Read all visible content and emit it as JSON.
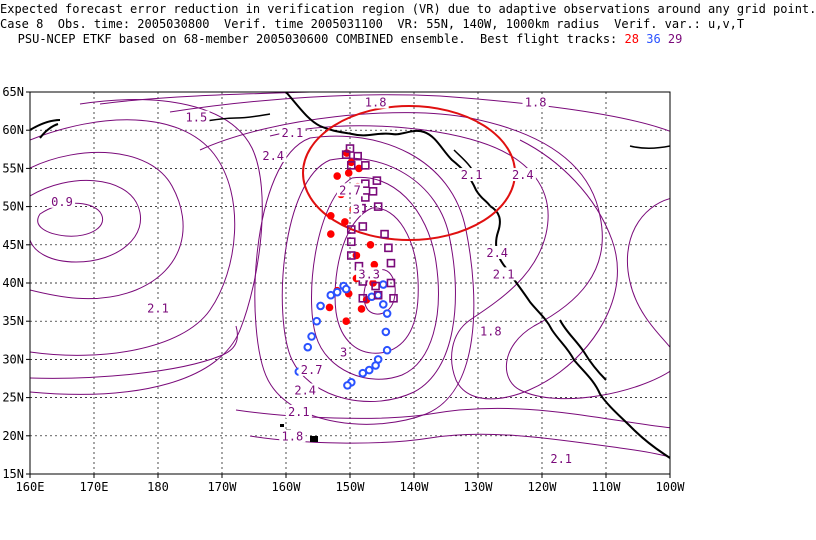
{
  "title": {
    "line1": "Expected forecast error reduction in verification region (VR) due to adaptive observations around any grid point.",
    "line2": "Case 8  Obs. time: 2005030800  Verif. time 2005031100  VR: 55N, 140W, 1000km radius  Verif. var.: u,v,T",
    "line3_prefix": "PSU-NCEP ETKF based on 68-member 2005030600 COMBINED ensemble.  Best flight tracks:",
    "track_28": "28",
    "track_36": "36",
    "track_29": "29"
  },
  "colors": {
    "contour": "#7a0a7a",
    "track_28": "#ff0000",
    "track_36": "#2a52ff",
    "track_29": "#7a0a7a",
    "verification_region": "#e01010",
    "coast": "#000000"
  },
  "map": {
    "lon_range": [
      160,
      260
    ],
    "lat_range": [
      15,
      65
    ],
    "lon_ticks": [
      "160E",
      "170E",
      "180",
      "170W",
      "160W",
      "150W",
      "140W",
      "130W",
      "120W",
      "110W",
      "100W"
    ],
    "lat_ticks": [
      "15N",
      "20N",
      "25N",
      "30N",
      "35N",
      "40N",
      "45N",
      "50N",
      "55N",
      "60N",
      "65N"
    ],
    "grid": true,
    "verification_region": {
      "lat": 55,
      "lon": -140,
      "radius_km": 1000
    }
  },
  "contour_labels": [
    {
      "text": "1.5",
      "lon": -174,
      "lat": 61.5
    },
    {
      "text": "1.8",
      "lon": -146,
      "lat": 63.5
    },
    {
      "text": "2.1",
      "lon": -159,
      "lat": 59.5
    },
    {
      "text": "2.4",
      "lon": -162,
      "lat": 56.5
    },
    {
      "text": "1.8",
      "lon": -121,
      "lat": 63.5
    },
    {
      "text": "2.1",
      "lon": -131,
      "lat": 54.0
    },
    {
      "text": "2.4",
      "lon": -123,
      "lat": 54.0
    },
    {
      "text": "2.7",
      "lon": -150,
      "lat": 52.0
    },
    {
      "text": "3",
      "lon": -149,
      "lat": 49.5
    },
    {
      "text": "0.9",
      "lon": -195,
      "lat": 50.5
    },
    {
      "text": "3.3",
      "lon": -147,
      "lat": 41.0
    },
    {
      "text": "3",
      "lon": -151,
      "lat": 30.8
    },
    {
      "text": "2.7",
      "lon": -156,
      "lat": 28.5
    },
    {
      "text": "2.4",
      "lon": -157,
      "lat": 25.8
    },
    {
      "text": "2.1",
      "lon": -158,
      "lat": 23.0
    },
    {
      "text": "1.8",
      "lon": -159,
      "lat": 19.8
    },
    {
      "text": "2.1",
      "lon": -180,
      "lat": 36.5
    },
    {
      "text": "2.4",
      "lon": -127,
      "lat": 43.8
    },
    {
      "text": "2.1",
      "lon": -126,
      "lat": 41.0
    },
    {
      "text": "1.8",
      "lon": -128,
      "lat": 33.5
    },
    {
      "text": "2.1",
      "lon": -117,
      "lat": 16.8
    }
  ]
}
